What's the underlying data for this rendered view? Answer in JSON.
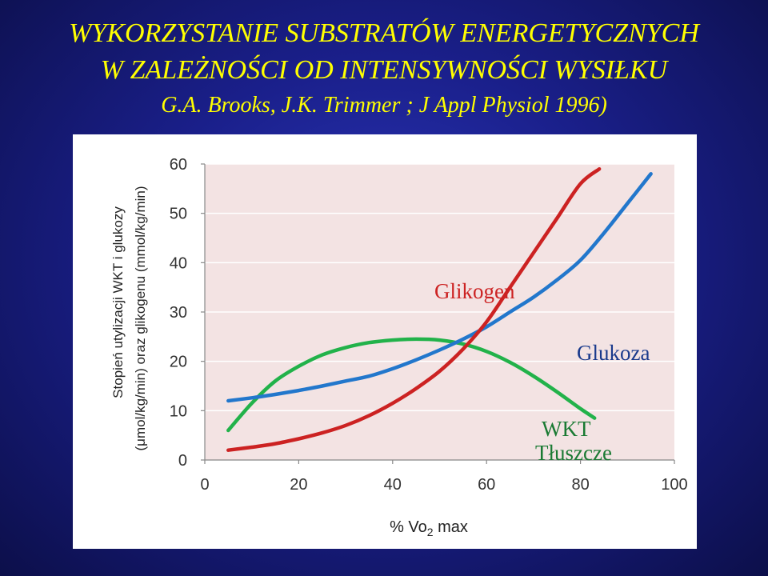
{
  "slide": {
    "title_line1": "WYKORZYSTANIE SUBSTRATÓW ENERGETYCZNYCH",
    "title_line2": "W ZALEŻNOŚCI OD INTENSYWNOŚCI WYSIŁKU",
    "citation": "G.A. Brooks, J.K. Trimmer ; J Appl Physiol 1996)",
    "title_color": "#ffff00"
  },
  "chart_data": {
    "type": "line",
    "xlabel": "% Vo2 max",
    "ylabel_line1": "Stopień utylizacji WKT i glukozy",
    "ylabel_line2": "(μmol/kg/min) oraz glikogenu (mmol/kg/min)",
    "xlim": [
      0,
      100
    ],
    "ylim": [
      0,
      60
    ],
    "xticks": [
      0,
      20,
      40,
      60,
      80,
      100
    ],
    "yticks": [
      0,
      10,
      20,
      30,
      40,
      50,
      60
    ],
    "plot_background": "#f3e3e3",
    "grid": true,
    "series": [
      {
        "name": "Glikogen",
        "color": "#cc2222",
        "x": [
          5,
          10,
          15,
          20,
          25,
          30,
          35,
          40,
          45,
          50,
          55,
          60,
          65,
          70,
          75,
          80,
          84
        ],
        "y": [
          2,
          2.6,
          3.3,
          4.3,
          5.5,
          7,
          9,
          11.5,
          14.5,
          18,
          22.5,
          28,
          35,
          42,
          49,
          56,
          59
        ]
      },
      {
        "name": "Glukoza",
        "color": "#2277cc",
        "x": [
          5,
          10,
          15,
          20,
          25,
          30,
          35,
          40,
          45,
          50,
          55,
          60,
          65,
          70,
          75,
          80,
          85,
          90,
          95
        ],
        "y": [
          12,
          12.6,
          13.3,
          14.1,
          15,
          16,
          17,
          18.5,
          20.3,
          22.3,
          24.5,
          27,
          30,
          33,
          36.5,
          40.5,
          46,
          52,
          58
        ]
      },
      {
        "name": "WKT Tłuszcze",
        "color": "#22b24a",
        "x": [
          5,
          10,
          15,
          20,
          25,
          30,
          35,
          40,
          45,
          50,
          55,
          60,
          65,
          70,
          75,
          80,
          83
        ],
        "y": [
          6,
          11.5,
          16,
          19,
          21.3,
          22.8,
          23.8,
          24.3,
          24.5,
          24.3,
          23.5,
          22,
          19.8,
          17,
          13.8,
          10.4,
          8.5
        ]
      }
    ],
    "annotations": [
      {
        "series": "Glikogen",
        "text": "Glikogen",
        "color": "#cc2222"
      },
      {
        "series": "Glukoza",
        "text": "Glukoza",
        "color": "#1a3a8c"
      },
      {
        "series": "WKT Tłuszcze",
        "text_line1": "WKT",
        "text_line2": "Tłuszcze",
        "color": "#1a7a33"
      }
    ]
  }
}
